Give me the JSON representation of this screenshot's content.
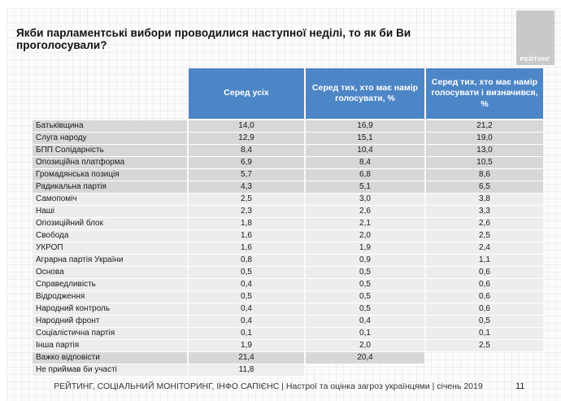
{
  "slide": {
    "title": "Якби парламентські вибори проводилися наступної неділі, то як би Ви проголосували?",
    "logo_text": "РЕЙТИНГ",
    "footer": "РЕЙТИНГ, СОЦІАЛЬНИЙ МОНІТОРИНГ, ІНФО САПІЄНС | Настрої та оцінка загроз українцями | січень 2019",
    "page_number": "11"
  },
  "colors": {
    "header_blue": "#4d86c6",
    "row_dark": "#d7d7d7",
    "row_light": "#ededed",
    "logo_grey": "#c9c9c9"
  },
  "chart_data": {
    "type": "table",
    "title": "Якби парламентські вибори проводилися наступної неділі, то як би Ви проголосували?",
    "columns": [
      "",
      "Серед усіх",
      "Серед тих, хто має намір голосувати, %",
      "Серед тих, хто має намір голосувати і визначився, %"
    ],
    "rows": [
      {
        "party": "Батьківщина",
        "values": [
          "14,0",
          "16,9",
          "21,2"
        ],
        "shade": "dark"
      },
      {
        "party": "Слуга народу",
        "values": [
          "12,9",
          "15,1",
          "19,0"
        ],
        "shade": "dark"
      },
      {
        "party": "БПП Солідарність",
        "values": [
          "8,4",
          "10,4",
          "13,0"
        ],
        "shade": "dark"
      },
      {
        "party": "Опозиційна платформа",
        "values": [
          "6,9",
          "8,4",
          "10,5"
        ],
        "shade": "dark"
      },
      {
        "party": "Громадянська позиція",
        "values": [
          "5,7",
          "6,8",
          "8,6"
        ],
        "shade": "dark"
      },
      {
        "party": "Радикальна партія",
        "values": [
          "4,3",
          "5,1",
          "6,5"
        ],
        "shade": "dark"
      },
      {
        "party": "Самопоміч",
        "values": [
          "2,5",
          "3,0",
          "3,8"
        ],
        "shade": "light"
      },
      {
        "party": "Наші",
        "values": [
          "2,3",
          "2,6",
          "3,3"
        ],
        "shade": "light"
      },
      {
        "party": "Опозиційний блок",
        "values": [
          "1,8",
          "2,1",
          "2,6"
        ],
        "shade": "light"
      },
      {
        "party": "Свобода",
        "values": [
          "1,6",
          "2,0",
          "2,5"
        ],
        "shade": "light"
      },
      {
        "party": "УКРОП",
        "values": [
          "1,6",
          "1,9",
          "2,4"
        ],
        "shade": "light"
      },
      {
        "party": "Аграрна партія України",
        "values": [
          "0,8",
          "0,9",
          "1,1"
        ],
        "shade": "light"
      },
      {
        "party": "Основа",
        "values": [
          "0,5",
          "0,5",
          "0,6"
        ],
        "shade": "light"
      },
      {
        "party": "Справедливість",
        "values": [
          "0,4",
          "0,5",
          "0,6"
        ],
        "shade": "light"
      },
      {
        "party": "Відродження",
        "values": [
          "0,5",
          "0,5",
          "0,6"
        ],
        "shade": "light"
      },
      {
        "party": "Народний контроль",
        "values": [
          "0,4",
          "0,5",
          "0,6"
        ],
        "shade": "light"
      },
      {
        "party": "Народний фронт",
        "values": [
          "0,4",
          "0,4",
          "0,5"
        ],
        "shade": "light"
      },
      {
        "party": "Соціалістична партія",
        "values": [
          "0,1",
          "0,1",
          "0,1"
        ],
        "shade": "light"
      },
      {
        "party": "Інша партія",
        "values": [
          "1,9",
          "2,0",
          "2,5"
        ],
        "shade": "light"
      },
      {
        "party": "Важко відповісти",
        "values": [
          "21,4",
          "20,4",
          ""
        ],
        "shade": "dark"
      },
      {
        "party": "Не приймав би участі",
        "values": [
          "11,8",
          "",
          ""
        ],
        "shade": "light"
      }
    ]
  }
}
